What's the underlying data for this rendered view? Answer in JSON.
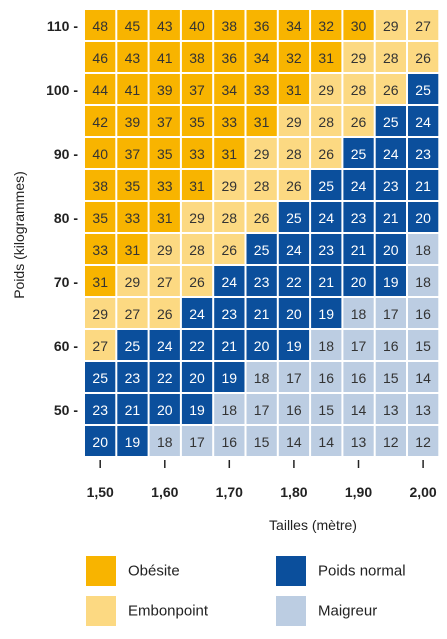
{
  "chart_data": {
    "type": "heatmap",
    "xlabel": "Tailles (mètre)",
    "ylabel": "Poids (kilogrammes)",
    "x_ticks": [
      "1,50",
      "1,60",
      "1,70",
      "1,80",
      "1,90",
      "2,00"
    ],
    "y_ticks": [
      "110 -",
      "100 -",
      "90 -",
      "80 -",
      "70 -",
      "60 -",
      "50 -"
    ],
    "grid": [
      [
        48,
        45,
        43,
        40,
        38,
        36,
        34,
        32,
        30,
        29,
        27
      ],
      [
        46,
        43,
        41,
        38,
        36,
        34,
        32,
        31,
        29,
        28,
        26
      ],
      [
        44,
        41,
        39,
        37,
        34,
        33,
        31,
        29,
        28,
        26,
        25
      ],
      [
        42,
        39,
        37,
        35,
        33,
        31,
        29,
        28,
        26,
        25,
        24
      ],
      [
        40,
        37,
        35,
        33,
        31,
        29,
        28,
        26,
        25,
        24,
        23
      ],
      [
        38,
        35,
        33,
        31,
        29,
        28,
        26,
        25,
        24,
        23,
        21
      ],
      [
        35,
        33,
        31,
        29,
        28,
        26,
        25,
        24,
        23,
        21,
        20
      ],
      [
        33,
        31,
        29,
        28,
        26,
        25,
        24,
        23,
        21,
        20,
        18
      ],
      [
        31,
        29,
        27,
        26,
        24,
        23,
        22,
        21,
        20,
        19,
        18
      ],
      [
        29,
        27,
        26,
        24,
        23,
        21,
        20,
        19,
        18,
        17,
        16
      ],
      [
        27,
        25,
        24,
        22,
        21,
        20,
        19,
        18,
        17,
        16,
        15
      ],
      [
        25,
        23,
        22,
        20,
        19,
        18,
        17,
        16,
        16,
        15,
        14
      ],
      [
        23,
        21,
        20,
        19,
        18,
        17,
        16,
        15,
        14,
        13,
        13
      ],
      [
        20,
        19,
        18,
        17,
        16,
        15,
        14,
        14,
        13,
        12,
        12
      ]
    ],
    "legend": [
      {
        "label": "Obésite",
        "color": "#f8b400"
      },
      {
        "label": "Poids normal",
        "color": "#0b4f9c"
      },
      {
        "label": "Embonpoint",
        "color": "#fcd982"
      },
      {
        "label": "Maigreur",
        "color": "#bccde2"
      }
    ],
    "colors": {
      "obesite": "#f8b400",
      "embonpoint": "#fcd982",
      "normal": "#0b4f9c",
      "maigreur": "#bccde2",
      "dark_text": "#333333",
      "light_text": "#ffffff"
    }
  }
}
